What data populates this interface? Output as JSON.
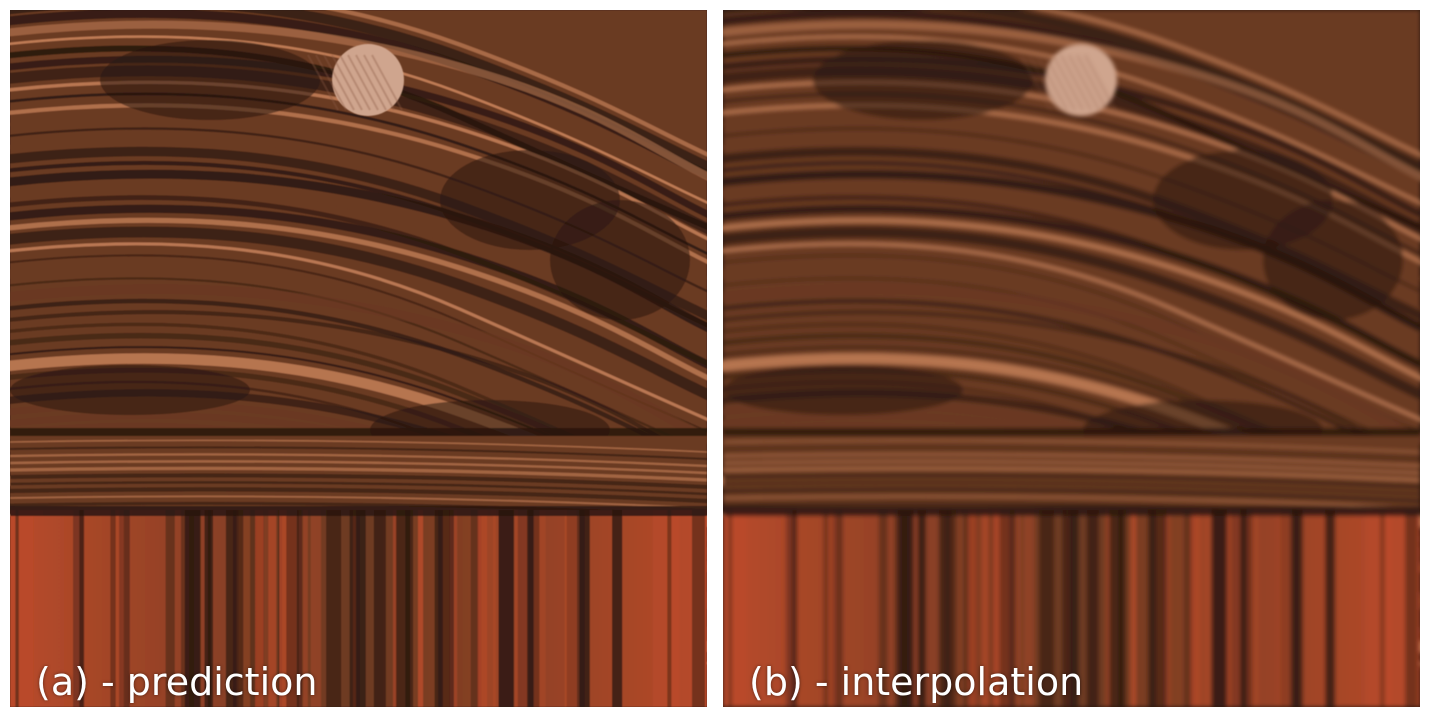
{
  "panels": [
    {
      "caption": "(a) - prediction",
      "sharp": true
    },
    {
      "caption": "(b) - interpolation",
      "sharp": false
    }
  ],
  "colors": {
    "dark_wood": "#2a1810",
    "mid_wood": "#6b3a22",
    "light_wood": "#c7825a",
    "red_wood": "#b94a2a",
    "knot": "#cfa58e",
    "caption_text": "#ffffff"
  }
}
